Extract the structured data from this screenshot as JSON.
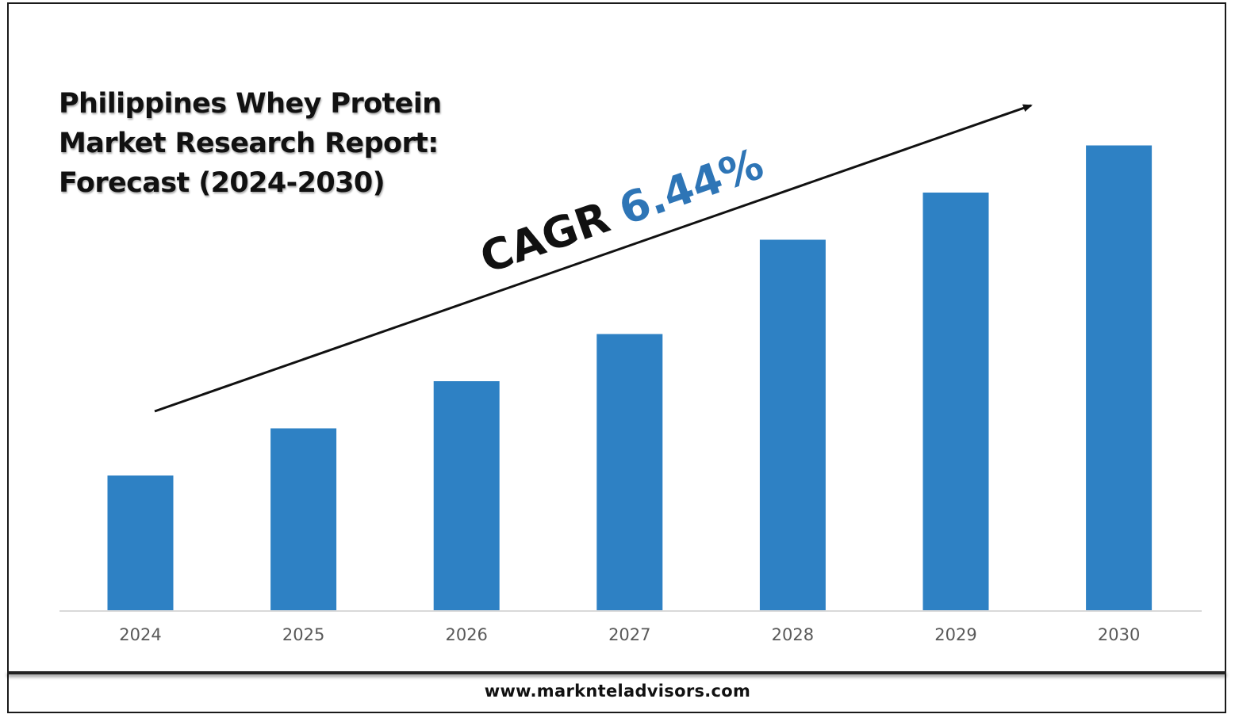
{
  "title_lines": [
    "Philippines Whey Protein",
    "Market Research Report:",
    "Forecast (2024-2030)"
  ],
  "cagr": {
    "prefix": "CAGR",
    "value": "6.44%",
    "value_color": "#2e75b6",
    "prefix_color": "#111111"
  },
  "footer": {
    "url": "www.marknteladvisors.com"
  },
  "colors": {
    "bar": "#2e81c4",
    "axis": "#d9d9d9",
    "tick_text": "#595959",
    "arrow": "#111111"
  },
  "chart_data": {
    "type": "bar",
    "categories": [
      "2024",
      "2025",
      "2026",
      "2027",
      "2028",
      "2029",
      "2030"
    ],
    "values": [
      1.0,
      1.35,
      1.7,
      2.05,
      2.75,
      3.1,
      3.45
    ],
    "value_note": "relative heights; no values printed",
    "title": "Philippines Whey Protein Market Research Report: Forecast (2024-2030)",
    "xlabel": "",
    "ylabel": "",
    "ylim": [
      0,
      3.5
    ],
    "grid": false,
    "legend": "none",
    "annotation": "CAGR 6.44%"
  }
}
